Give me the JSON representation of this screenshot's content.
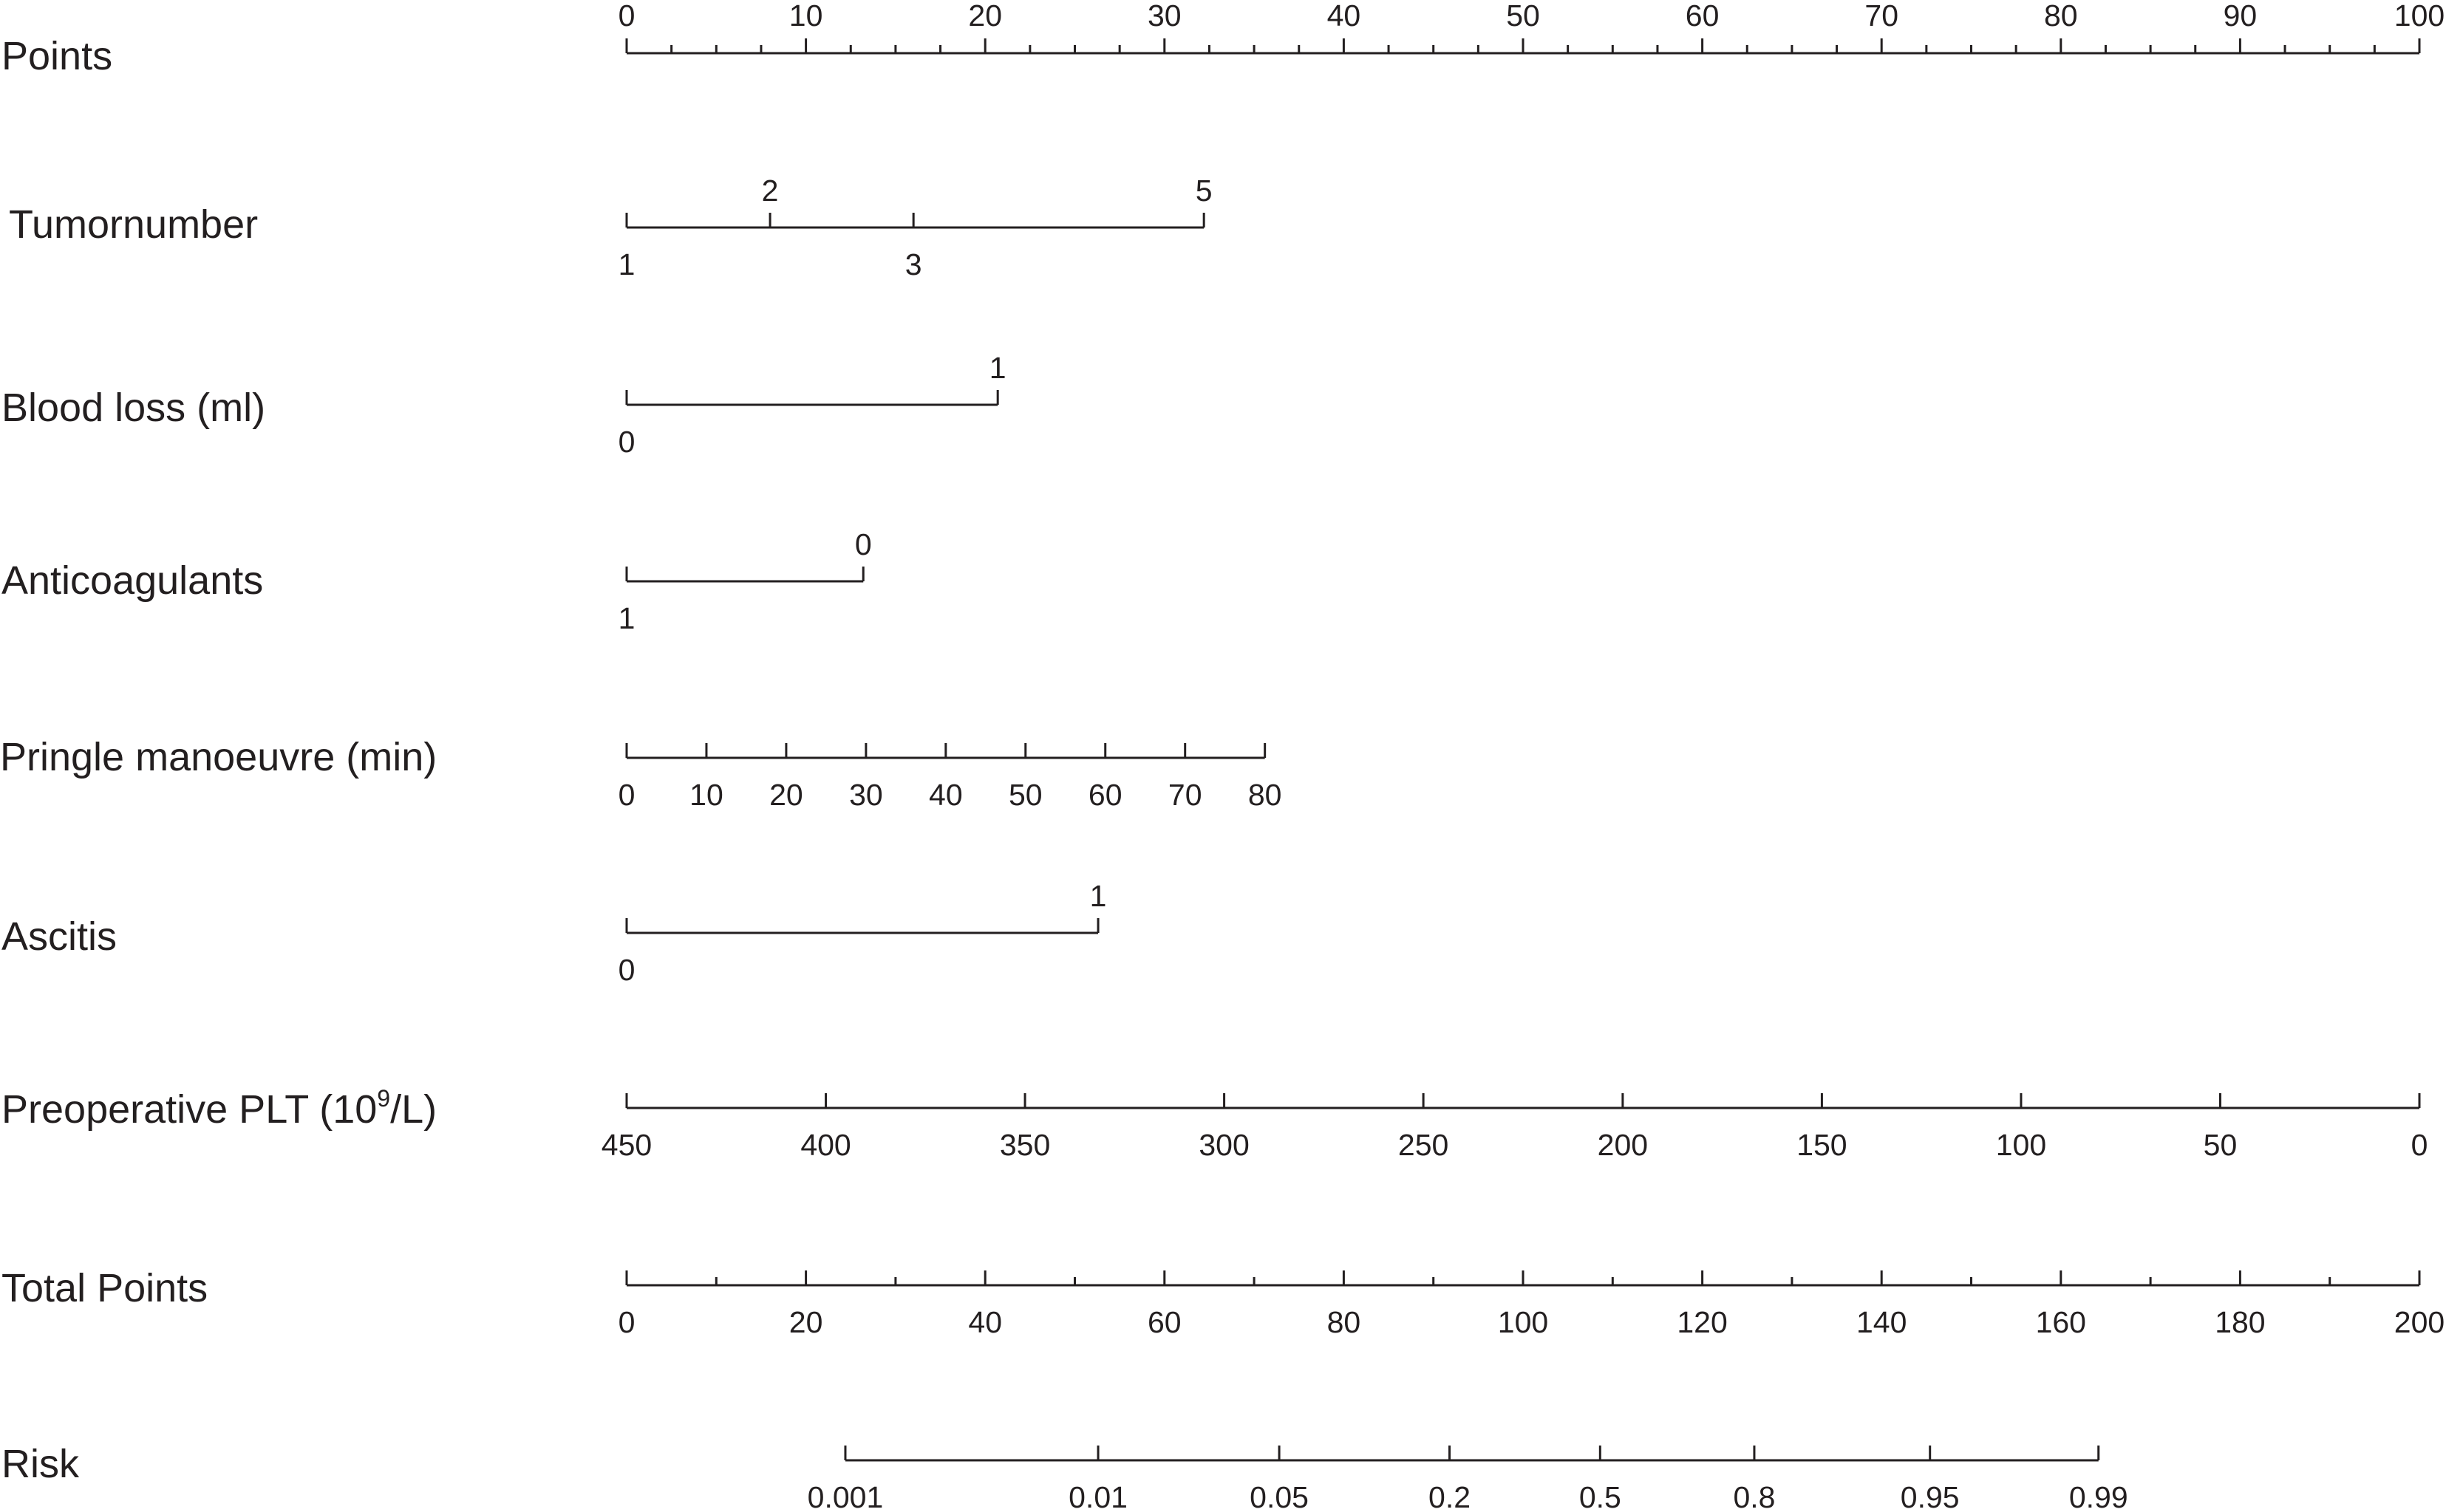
{
  "chart_data": {
    "type": "nomogram",
    "points_scale": {
      "min": 0,
      "max": 100
    },
    "rows": [
      {
        "id": "points",
        "label": "Points",
        "kind": "scale",
        "tick_side": "up",
        "minor_step": 2.5,
        "ticks": [
          {
            "label": "0",
            "points": 0
          },
          {
            "label": "10",
            "points": 10
          },
          {
            "label": "20",
            "points": 20
          },
          {
            "label": "30",
            "points": 30
          },
          {
            "label": "40",
            "points": 40
          },
          {
            "label": "50",
            "points": 50
          },
          {
            "label": "60",
            "points": 60
          },
          {
            "label": "70",
            "points": 70
          },
          {
            "label": "80",
            "points": 80
          },
          {
            "label": "90",
            "points": 90
          },
          {
            "label": "100",
            "points": 100
          }
        ]
      },
      {
        "id": "tumornumber",
        "label": "Tumornumber",
        "kind": "categorical",
        "ticks": [
          {
            "label": "1",
            "points": 0,
            "side": "down"
          },
          {
            "label": "2",
            "points": 8,
            "side": "up"
          },
          {
            "label": "3",
            "points": 16,
            "side": "down"
          },
          {
            "label": "5",
            "points": 32.2,
            "side": "up"
          }
        ]
      },
      {
        "id": "blood_loss",
        "label": "Blood loss (ml)",
        "kind": "categorical",
        "ticks": [
          {
            "label": "0",
            "points": 0,
            "side": "down"
          },
          {
            "label": "1",
            "points": 20.7,
            "side": "up"
          }
        ]
      },
      {
        "id": "anticoagulants",
        "label": "Anticoagulants",
        "kind": "categorical",
        "ticks": [
          {
            "label": "1",
            "points": 0,
            "side": "down"
          },
          {
            "label": "0",
            "points": 13.2,
            "side": "up"
          }
        ]
      },
      {
        "id": "pringle",
        "label": "Pringle manoeuvre (min)",
        "kind": "scale",
        "tick_side": "up",
        "ticks": [
          {
            "label": "0",
            "points": 0
          },
          {
            "label": "10",
            "points": 4.45
          },
          {
            "label": "20",
            "points": 8.9
          },
          {
            "label": "30",
            "points": 13.35
          },
          {
            "label": "40",
            "points": 17.8
          },
          {
            "label": "50",
            "points": 22.25
          },
          {
            "label": "60",
            "points": 26.7
          },
          {
            "label": "70",
            "points": 31.15
          },
          {
            "label": "80",
            "points": 35.6
          }
        ]
      },
      {
        "id": "ascitis",
        "label": "Ascitis",
        "kind": "categorical",
        "ticks": [
          {
            "label": "0",
            "points": 0,
            "side": "down"
          },
          {
            "label": "1",
            "points": 26.3,
            "side": "up"
          }
        ]
      },
      {
        "id": "plt",
        "label_prefix": "Preoperative PLT (10",
        "label_sup": "9",
        "label_suffix": "/L)",
        "kind": "scale",
        "tick_side": "up",
        "ticks": [
          {
            "label": "450",
            "points": 0
          },
          {
            "label": "400",
            "points": 11.11
          },
          {
            "label": "350",
            "points": 22.22
          },
          {
            "label": "300",
            "points": 33.33
          },
          {
            "label": "250",
            "points": 44.44
          },
          {
            "label": "200",
            "points": 55.56
          },
          {
            "label": "150",
            "points": 66.67
          },
          {
            "label": "100",
            "points": 77.78
          },
          {
            "label": "50",
            "points": 88.89
          },
          {
            "label": "0",
            "points": 100
          }
        ]
      },
      {
        "id": "total_points",
        "label": "Total Points",
        "kind": "scale",
        "tick_side": "up",
        "minor_step": 5,
        "ticks": [
          {
            "label": "0",
            "points": 0
          },
          {
            "label": "20",
            "points": 10
          },
          {
            "label": "40",
            "points": 20
          },
          {
            "label": "60",
            "points": 30
          },
          {
            "label": "80",
            "points": 40
          },
          {
            "label": "100",
            "points": 50
          },
          {
            "label": "120",
            "points": 60
          },
          {
            "label": "140",
            "points": 70
          },
          {
            "label": "160",
            "points": 80
          },
          {
            "label": "180",
            "points": 90
          },
          {
            "label": "200",
            "points": 100
          }
        ]
      },
      {
        "id": "risk",
        "label": "Risk",
        "kind": "scale",
        "tick_side": "up",
        "ticks": [
          {
            "label": "0.001",
            "points": 12.2,
            "total_points": 24.4
          },
          {
            "label": "0.01",
            "points": 26.3,
            "total_points": 52.6
          },
          {
            "label": "0.05",
            "points": 36.4,
            "total_points": 72.8
          },
          {
            "label": "0.2",
            "points": 45.9,
            "total_points": 91.8
          },
          {
            "label": "0.5",
            "points": 54.3,
            "total_points": 108.6
          },
          {
            "label": "0.8",
            "points": 62.9,
            "total_points": 125.8
          },
          {
            "label": "0.95",
            "points": 72.7,
            "total_points": 145.4
          },
          {
            "label": "0.99",
            "points": 82.1,
            "total_points": 164.2
          }
        ]
      }
    ]
  }
}
